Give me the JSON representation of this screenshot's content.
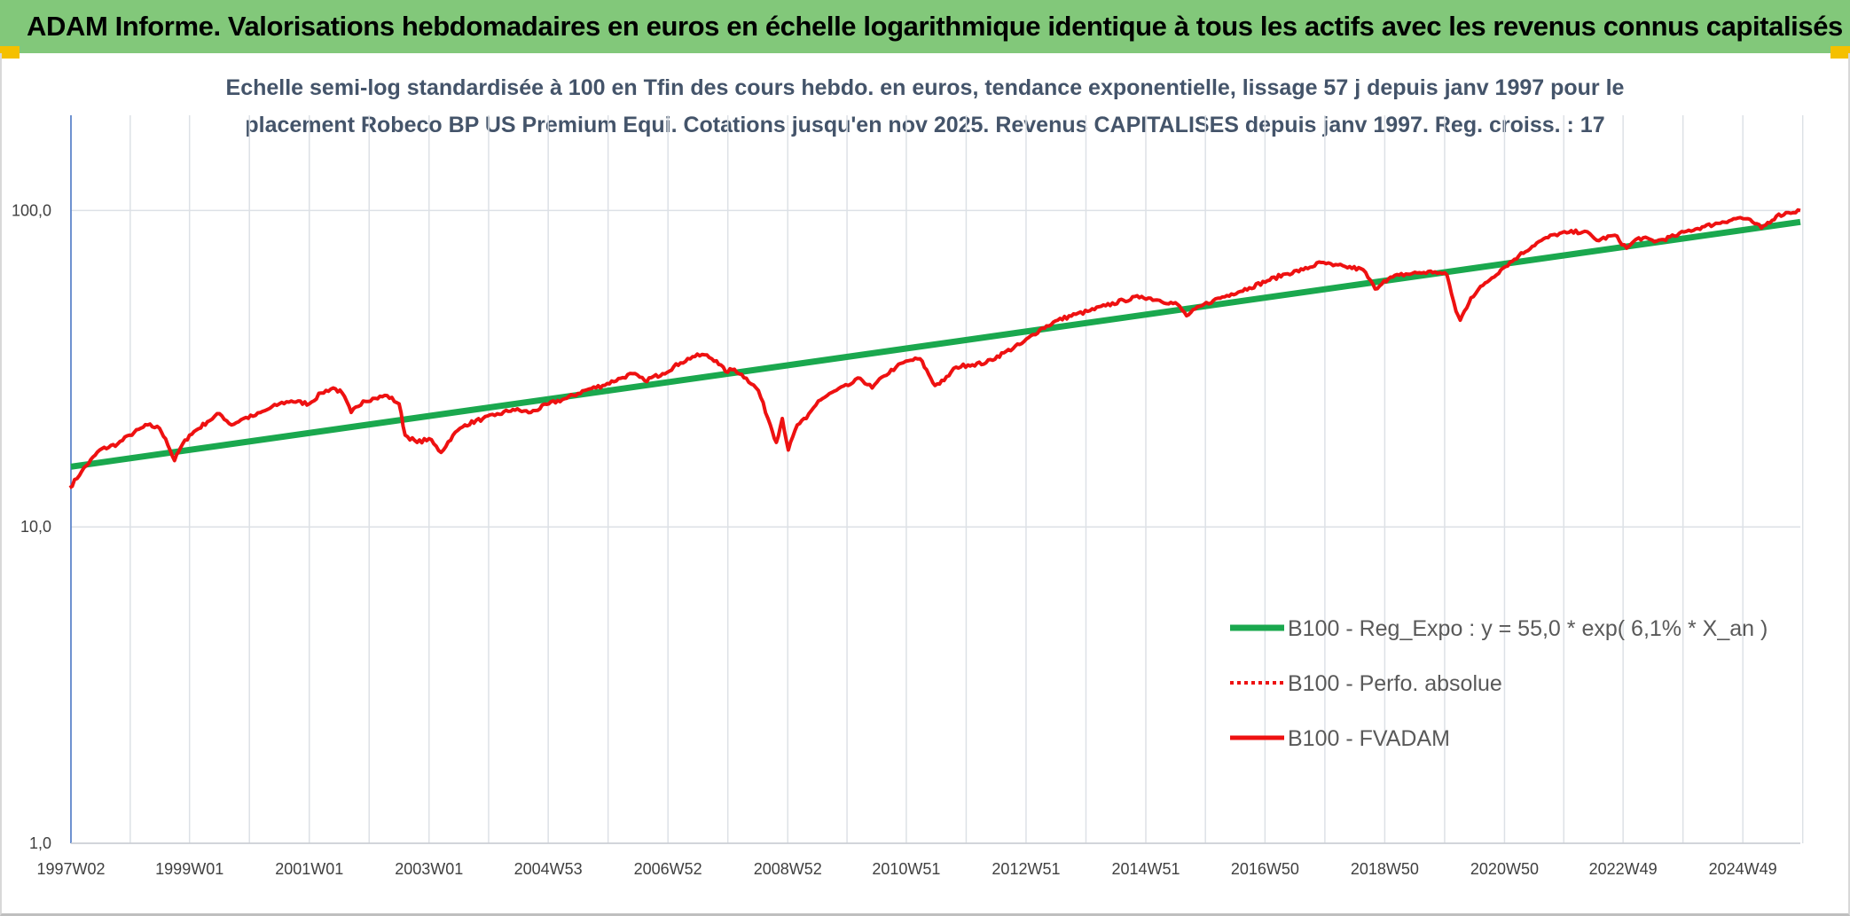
{
  "header": {
    "title": "ADAM Informe. Valorisations hebdomadaires en euros en échelle logarithmique identique à tous les actifs avec les revenus connus capitalisés"
  },
  "colors": {
    "header_bg": "#82c87a",
    "corner_accent": "#f5c000",
    "trend_line": "#1aa84e",
    "fvadam_line": "#ee1111",
    "perfo_line": "#ee1111",
    "subtitle_text": "#44546a",
    "grid": "#dde1e6"
  },
  "chart_data": {
    "type": "line",
    "subtitle_lines": [
      "Echelle semi-log standardisée à 100 en Tfin des cours hebdo. en euros, tendance exponentielle, lissage 57 j depuis janv 1997 pour le",
      "placement Robeco BP US Premium Equi. Cotations jusqu'en nov 2025. Revenus CAPITALISES depuis janv 1997. Reg. croiss. : 17"
    ],
    "y_scale": "log",
    "ylim": [
      1,
      200
    ],
    "y_ticks": [
      {
        "value": 1,
        "label": "1,0"
      },
      {
        "value": 10,
        "label": "10,0"
      },
      {
        "value": 100,
        "label": "100,0"
      }
    ],
    "xlim": [
      1997.02,
      2025.9
    ],
    "x_ticks": [
      {
        "value": 1997.02,
        "label": "1997W02"
      },
      {
        "value": 1999.0,
        "label": "1999W01"
      },
      {
        "value": 2001.0,
        "label": "2001W01"
      },
      {
        "value": 2003.0,
        "label": "2003W01"
      },
      {
        "value": 2004.99,
        "label": "2004W53"
      },
      {
        "value": 2006.99,
        "label": "2006W52"
      },
      {
        "value": 2008.99,
        "label": "2008W52"
      },
      {
        "value": 2010.97,
        "label": "2010W51"
      },
      {
        "value": 2012.97,
        "label": "2012W51"
      },
      {
        "value": 2014.97,
        "label": "2014W51"
      },
      {
        "value": 2016.96,
        "label": "2016W50"
      },
      {
        "value": 2018.96,
        "label": "2018W50"
      },
      {
        "value": 2020.96,
        "label": "2020W50"
      },
      {
        "value": 2022.94,
        "label": "2022W49"
      },
      {
        "value": 2024.94,
        "label": "2024W49"
      }
    ],
    "grid": true,
    "legend_position": "right",
    "series": [
      {
        "name": "B100 - Reg_Expo : y = 55,0 * exp( 6,1% *  X_an )",
        "style": "solid-thick",
        "x": [
          1997.02,
          2025.9
        ],
        "values": [
          15.5,
          92
        ]
      },
      {
        "name": "B100 - Perfo. absolue",
        "style": "dotted",
        "x": [],
        "values": []
      },
      {
        "name": "B100 - FVADAM",
        "style": "solid",
        "x": [
          1997.0,
          1997.2,
          1997.5,
          1997.8,
          1998.0,
          1998.3,
          1998.5,
          1998.6,
          1998.75,
          1998.85,
          1999.0,
          1999.3,
          1999.5,
          1999.7,
          1999.9,
          2000.1,
          2000.3,
          2000.5,
          2000.7,
          2001.0,
          2001.2,
          2001.4,
          2001.55,
          2001.7,
          2001.9,
          2002.1,
          2002.3,
          2002.5,
          2002.6,
          2002.8,
          2003.0,
          2003.2,
          2003.4,
          2003.6,
          2003.9,
          2004.1,
          2004.4,
          2004.7,
          2005.0,
          2005.3,
          2005.6,
          2005.9,
          2006.2,
          2006.4,
          2006.6,
          2006.9,
          2007.2,
          2007.4,
          2007.6,
          2007.8,
          2007.95,
          2008.1,
          2008.3,
          2008.5,
          2008.7,
          2008.8,
          2008.9,
          2009.0,
          2009.15,
          2009.3,
          2009.5,
          2009.8,
          2010.0,
          2010.2,
          2010.4,
          2010.6,
          2010.8,
          2011.0,
          2011.2,
          2011.45,
          2011.6,
          2011.8,
          2012.0,
          2012.3,
          2012.6,
          2012.9,
          2013.2,
          2013.5,
          2013.8,
          2014.0,
          2014.3,
          2014.6,
          2014.9,
          2015.2,
          2015.5,
          2015.65,
          2015.9,
          2016.1,
          2016.4,
          2016.7,
          2017.0,
          2017.3,
          2017.6,
          2017.9,
          2018.1,
          2018.3,
          2018.6,
          2018.8,
          2018.95,
          2019.2,
          2019.5,
          2019.8,
          2020.0,
          2020.15,
          2020.22,
          2020.4,
          2020.6,
          2020.9,
          2021.2,
          2021.5,
          2021.8,
          2022.0,
          2022.3,
          2022.5,
          2022.8,
          2023.0,
          2023.2,
          2023.5,
          2023.8,
          2024.0,
          2024.3,
          2024.6,
          2024.9,
          2025.1,
          2025.25,
          2025.5,
          2025.7,
          2025.9
        ],
        "values": [
          13.3,
          15.0,
          17.5,
          18.3,
          19.5,
          21.0,
          20.5,
          19.0,
          16.2,
          17.8,
          19.5,
          21.5,
          22.8,
          21.0,
          22.0,
          22.5,
          23.5,
          24.5,
          25.0,
          24.5,
          26.5,
          27.5,
          26.5,
          23.0,
          25.0,
          25.5,
          26.0,
          24.5,
          19.5,
          18.5,
          19.0,
          17.2,
          19.5,
          21.0,
          22.0,
          22.5,
          23.5,
          23.0,
          24.5,
          25.5,
          27.0,
          28.0,
          29.5,
          30.5,
          29.0,
          30.5,
          33.0,
          34.5,
          35.0,
          33.5,
          31.0,
          31.5,
          29.5,
          27.0,
          21.0,
          18.5,
          22.0,
          17.5,
          21.0,
          22.0,
          25.0,
          27.0,
          28.0,
          29.5,
          27.5,
          30.0,
          32.0,
          33.5,
          34.0,
          28.0,
          29.0,
          32.0,
          32.5,
          33.0,
          35.5,
          38.0,
          42.0,
          45.0,
          47.0,
          48.0,
          50.0,
          52.0,
          53.5,
          52.0,
          50.5,
          46.5,
          50.0,
          52.0,
          54.5,
          57.0,
          60.0,
          63.0,
          65.0,
          68.5,
          67.0,
          66.5,
          65.0,
          56.5,
          60.0,
          62.5,
          63.5,
          64.0,
          62.5,
          48.0,
          45.0,
          53.0,
          58.0,
          65.0,
          72.0,
          79.0,
          84.0,
          85.0,
          86.0,
          80.5,
          83.5,
          76.0,
          82.0,
          80.0,
          83.0,
          86.0,
          89.0,
          92.0,
          95.0,
          92.0,
          88.0,
          96.0,
          98.5,
          100.0
        ]
      }
    ]
  }
}
